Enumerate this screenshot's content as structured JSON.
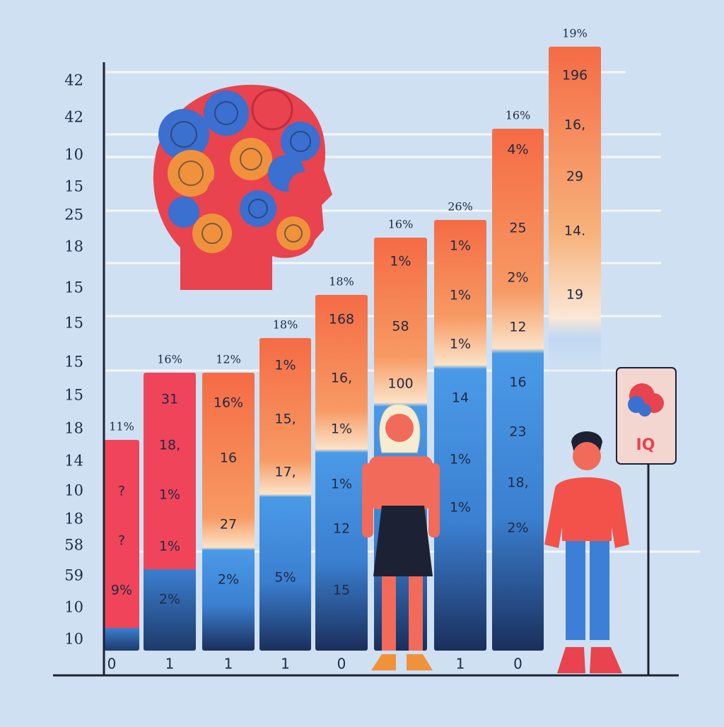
{
  "y_axis_labels": [
    "42",
    "42",
    "10",
    "15",
    "25",
    "18",
    "15",
    "15",
    "15",
    "15",
    "18",
    "14",
    "10",
    "18",
    "58",
    "59",
    "10",
    "10"
  ],
  "bars": [
    {
      "top_label": "11%",
      "labels": [
        "?",
        "?",
        "9%"
      ],
      "x_label": "0"
    },
    {
      "top_label": "16%",
      "labels": [
        "31",
        "18,",
        "1%",
        "1%",
        "2%"
      ],
      "x_label": "1"
    },
    {
      "top_label": "12%",
      "labels": [
        "16%",
        "16",
        "27",
        "2%"
      ],
      "x_label": "1"
    },
    {
      "top_label": "18%",
      "labels": [
        "1%",
        "15,",
        "17,",
        "5%"
      ],
      "x_label": "1"
    },
    {
      "top_label": "18%",
      "labels": [
        "168",
        "16,",
        "1%",
        "1%",
        "12",
        "15"
      ],
      "x_label": "0"
    },
    {
      "top_label": "16%",
      "labels": [
        "1%",
        "58",
        "100"
      ]
    },
    {
      "top_label": "26%",
      "labels": [
        "1%",
        "1%",
        "1%",
        "14",
        "1%",
        "1%"
      ],
      "x_label": "1"
    },
    {
      "top_label": "16%",
      "labels": [
        "4%",
        "25",
        "2%",
        "12",
        "16",
        "23",
        "18,",
        "2%"
      ],
      "x_label": "0"
    },
    {
      "top_label": "19%",
      "labels": [
        "196",
        "16,",
        "29",
        "14.",
        "19"
      ]
    }
  ],
  "sign": {
    "label": "IQ"
  }
}
